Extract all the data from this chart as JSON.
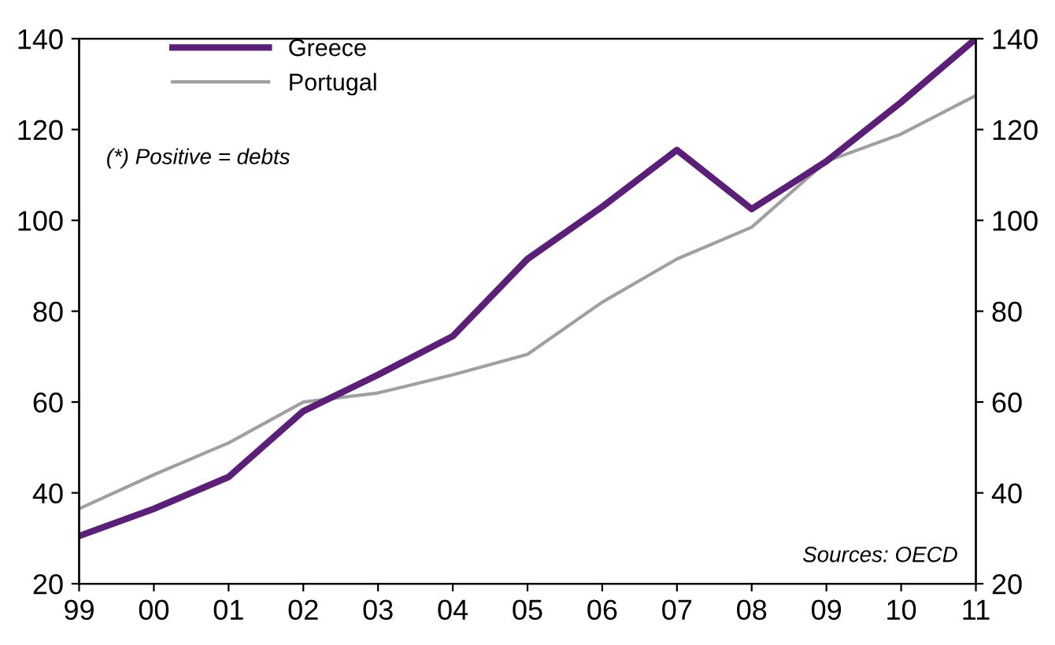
{
  "chart_data": {
    "type": "line",
    "categories": [
      "99",
      "00",
      "01",
      "02",
      "03",
      "04",
      "05",
      "06",
      "07",
      "08",
      "09",
      "10",
      "11"
    ],
    "series": [
      {
        "name": "Greece",
        "color": "#5b1f7a",
        "values": [
          30.5,
          36.5,
          43.5,
          58,
          66,
          74.5,
          91.5,
          103,
          115.5,
          102.5,
          113,
          126,
          140
        ]
      },
      {
        "name": "Portugal",
        "color": "#a0a0a0",
        "values": [
          36.5,
          44,
          51,
          60,
          62,
          66,
          70.5,
          82,
          91.5,
          98.5,
          113,
          119,
          127.5
        ]
      }
    ],
    "ylim": [
      20,
      140
    ],
    "yticks": [
      20,
      40,
      60,
      80,
      100,
      120,
      140
    ],
    "y2lim": [
      20,
      140
    ],
    "y2ticks": [
      20,
      40,
      60,
      80,
      100,
      120,
      140
    ],
    "annotations": [
      "(*) Positive = debts",
      "Sources: OECD"
    ],
    "legend": "top left",
    "grid": false,
    "marker": "none",
    "line_style": "solid"
  }
}
